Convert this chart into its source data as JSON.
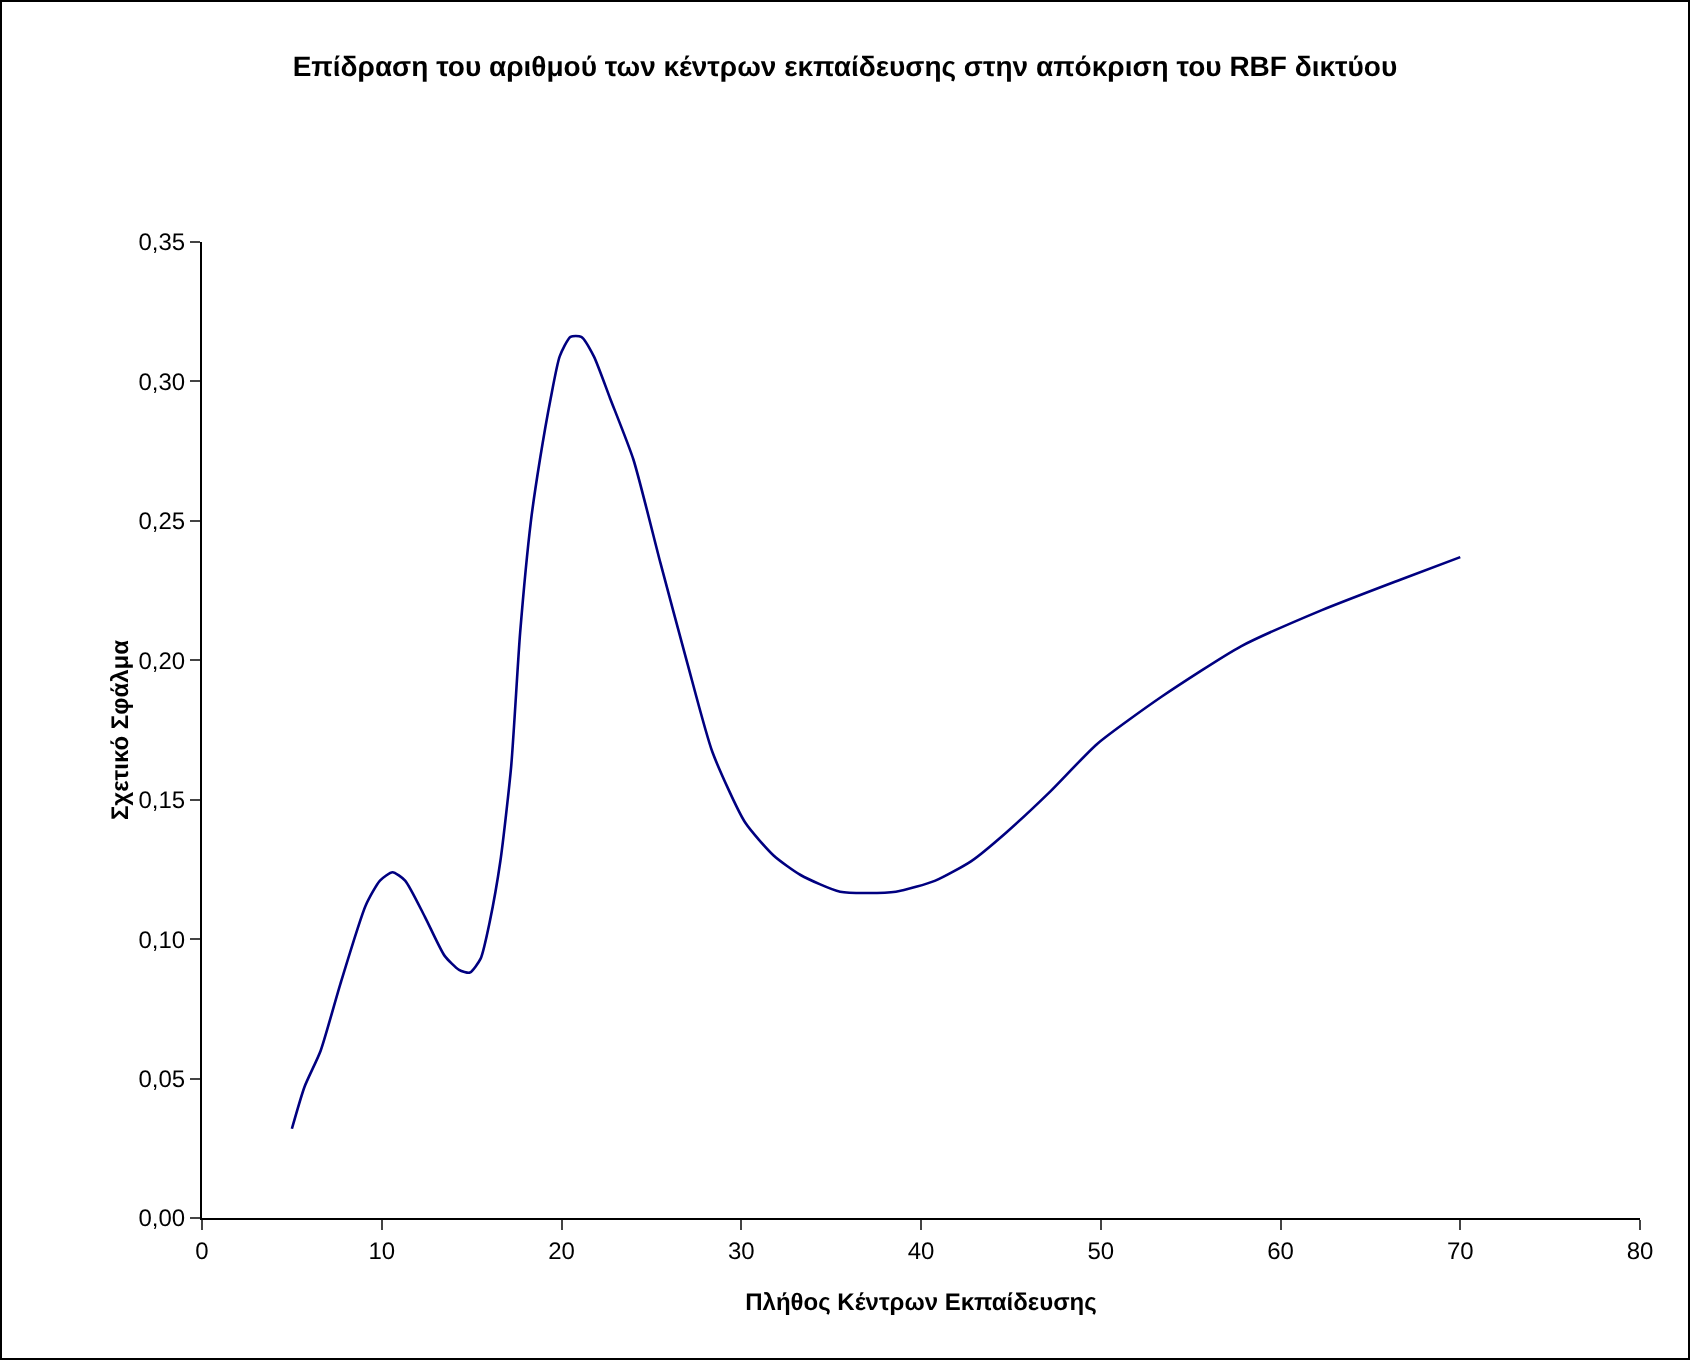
{
  "chart_data": {
    "type": "line",
    "title": "Επίδραση του αριθμού των κέντρων εκπαίδευσης στην απόκριση του RBF δικτύου",
    "xlabel": "Πλήθος Κέντρων Εκπαίδευσης",
    "ylabel": "Σχετικό Σφάλμα",
    "x": [
      5.0,
      5.7,
      6.6,
      7.7,
      9.1,
      9.9,
      10.6,
      11.3,
      12.4,
      13.5,
      14.3,
      14.9,
      15.5,
      16.0,
      16.6,
      17.2,
      17.7,
      18.3,
      18.8,
      19.4,
      19.9,
      20.5,
      21.1,
      21.8,
      22.7,
      24.0,
      25.5,
      27.0,
      28.4,
      30.2,
      31.8,
      33.3,
      35.5,
      38.6,
      40.8,
      42.8,
      44.7,
      47.2,
      49.8,
      53.4,
      57.8,
      62.3,
      66.7,
      70.0
    ],
    "series": [
      {
        "color": "#000080",
        "values": [
          0.032,
          0.047,
          0.06,
          0.084,
          0.112,
          0.121,
          0.124,
          0.121,
          0.108,
          0.094,
          0.089,
          0.088,
          0.093,
          0.106,
          0.128,
          0.162,
          0.21,
          0.25,
          0.272,
          0.294,
          0.309,
          0.316,
          0.316,
          0.309,
          0.294,
          0.272,
          0.235,
          0.199,
          0.167,
          0.142,
          0.13,
          0.123,
          0.117,
          0.117,
          0.121,
          0.128,
          0.138,
          0.153,
          0.17,
          0.187,
          0.205,
          0.218,
          0.229,
          0.237
        ]
      }
    ],
    "xlim": [
      0,
      80
    ],
    "xticks": [
      0,
      10,
      20,
      30,
      40,
      50,
      60,
      70,
      80
    ],
    "ylim": [
      0,
      0.35
    ],
    "yticks": [
      {
        "value": 0,
        "label": "0,00"
      },
      {
        "value": 0.05,
        "label": "0,05"
      },
      {
        "value": 0.1,
        "label": "0,10"
      },
      {
        "value": 0.15,
        "label": "0,15"
      },
      {
        "value": 0.2,
        "label": "0,20"
      },
      {
        "value": 0.25,
        "label": "0,25"
      },
      {
        "value": 0.3,
        "label": "0,30"
      },
      {
        "value": 0.35,
        "label": "0,35"
      }
    ],
    "grid": false,
    "legend": false,
    "marker": "none",
    "line_style": "solid"
  }
}
